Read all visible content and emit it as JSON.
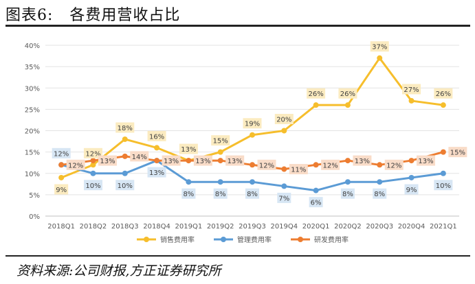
{
  "figure": {
    "title": "图表6:   各费用营收占比",
    "source": "资料来源:公司财报,方正证券研究所"
  },
  "chart_data": {
    "type": "line",
    "categories": [
      "2018Q1",
      "2018Q2",
      "2018Q3",
      "2018Q4",
      "2019Q1",
      "2019Q2",
      "2019Q3",
      "2019Q4",
      "2020Q1",
      "2020Q2",
      "2020Q3",
      "2020Q4",
      "2021Q1"
    ],
    "ylim": [
      0,
      40
    ],
    "y_ticks": [
      0,
      5,
      10,
      15,
      20,
      25,
      30,
      35,
      40
    ],
    "y_tick_labels": [
      "0%",
      "5%",
      "10%",
      "15%",
      "20%",
      "25%",
      "30%",
      "35%",
      "40%"
    ],
    "legend_position": "bottom",
    "series": [
      {
        "name": "销售费用率",
        "color": "#F6BE2C",
        "label_bg": "#FBEBC0",
        "values": [
          9,
          12,
          18,
          16,
          13,
          15,
          19,
          20,
          26,
          26,
          37,
          27,
          26
        ],
        "labels": [
          "9%",
          "12%",
          "18%",
          "16%",
          "13%",
          "15%",
          "19%",
          "20%",
          "26%",
          "26%",
          "37%",
          "27%",
          "26%"
        ],
        "label_pos": [
          "below",
          "above",
          "above",
          "above",
          "above",
          "above",
          "above",
          "above",
          "above",
          "above",
          "above",
          "above",
          "above"
        ]
      },
      {
        "name": "管理费用率",
        "color": "#5B9BD5",
        "label_bg": "#D7E6F4",
        "values": [
          12,
          10,
          10,
          13,
          8,
          8,
          8,
          7,
          6,
          8,
          8,
          9,
          10
        ],
        "labels": [
          "12%",
          "10%",
          "10%",
          "13%",
          "8%",
          "8%",
          "8%",
          "7%",
          "6%",
          "8%",
          "8%",
          "9%",
          "10%"
        ],
        "label_pos": [
          "above",
          "below",
          "below",
          "below",
          "below",
          "below",
          "below",
          "below",
          "below",
          "below",
          "below",
          "below",
          "below"
        ]
      },
      {
        "name": "研发费用率",
        "color": "#ED7D31",
        "label_bg": "#F9DCC8",
        "values": [
          12,
          13,
          14,
          13,
          13,
          13,
          12,
          11,
          12,
          13,
          12,
          13,
          15
        ],
        "labels": [
          "12%",
          "13%",
          "14%",
          "13%",
          "13%",
          "13%",
          "12%",
          "11%",
          "12%",
          "13%",
          "12%",
          "13%",
          "15%"
        ],
        "label_pos": [
          "right",
          "right",
          "right",
          "right",
          "right",
          "right",
          "right",
          "right",
          "right",
          "right",
          "right",
          "right",
          "right"
        ]
      }
    ]
  }
}
